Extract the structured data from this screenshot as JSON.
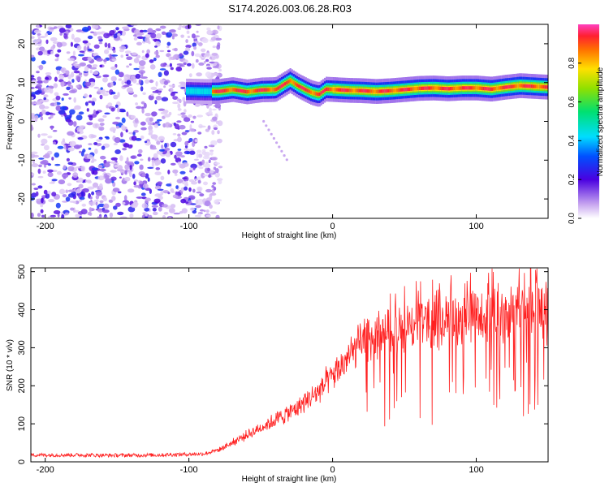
{
  "title": "S174.2026.003.06.28.R03",
  "chart_data": [
    {
      "type": "heatmap",
      "xlabel": "Height of straight line (km)",
      "ylabel": "Frequency (Hz)",
      "xlim": [
        -210,
        150
      ],
      "ylim": [
        -25,
        25
      ],
      "xticks": [
        -200,
        -100,
        0,
        100
      ],
      "yticks": [
        -20,
        -10,
        0,
        10,
        20
      ],
      "colorbar": {
        "label": "Normalized spectral amplitude",
        "range": [
          0,
          1
        ],
        "ticks": [
          0.0,
          0.2,
          0.4,
          0.6,
          0.8
        ]
      },
      "ridge": {
        "x": [
          -100,
          -90,
          -80,
          -70,
          -60,
          -50,
          -40,
          -30,
          -25,
          -20,
          -15,
          -10,
          -5,
          0,
          10,
          20,
          30,
          40,
          50,
          60,
          70,
          80,
          90,
          100,
          110,
          120,
          130,
          140,
          150
        ],
        "frequency": [
          7.8,
          7.7,
          7.7,
          8.2,
          7.6,
          8.1,
          8.2,
          10.5,
          9.3,
          8.3,
          7.4,
          6.9,
          8.3,
          8.2,
          8.0,
          7.9,
          7.7,
          7.9,
          8.2,
          8.5,
          8.6,
          8.4,
          8.6,
          8.6,
          8.3,
          8.8,
          9.2,
          9.0,
          8.8
        ]
      }
    },
    {
      "type": "line",
      "xlabel": "Height of straight line (km)",
      "ylabel": "SNR (10 * v/v)",
      "xlim": [
        -210,
        150
      ],
      "ylim": [
        0,
        510
      ],
      "xticks": [
        -200,
        -100,
        0,
        100
      ],
      "yticks": [
        0,
        100,
        200,
        300,
        400,
        500
      ],
      "series": [
        {
          "color": "#ff2020",
          "trend": {
            "x": [
              -210,
              -180,
              -150,
              -120,
              -90,
              -80,
              -70,
              -60,
              -50,
              -40,
              -30,
              -20,
              -10,
              0,
              10,
              20,
              30,
              40,
              50,
              60,
              70,
              80,
              90,
              100,
              110,
              120,
              130,
              140,
              150
            ],
            "y": [
              18,
              18,
              17,
              18,
              21,
              30,
              50,
              70,
              90,
              110,
              130,
              155,
              185,
              225,
              270,
              310,
              330,
              345,
              355,
              365,
              370,
              375,
              380,
              385,
              390,
              395,
              400,
              405,
              410
            ]
          }
        }
      ]
    }
  ]
}
